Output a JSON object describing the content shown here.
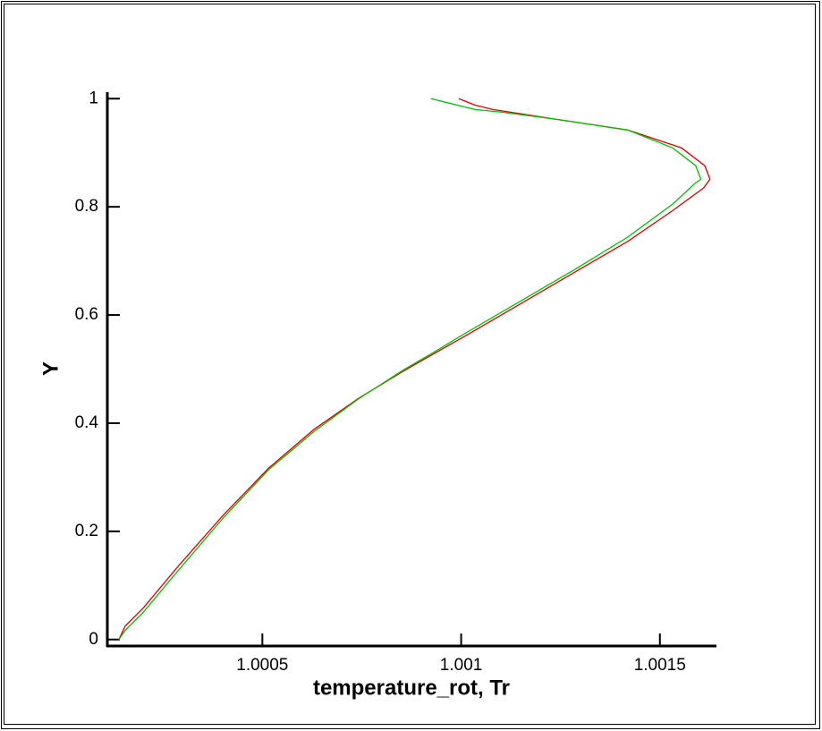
{
  "chart_data": {
    "type": "line",
    "xlabel": "temperature_rot, Tr",
    "ylabel": "Y",
    "xlim": [
      1.00011,
      1.00164
    ],
    "ylim": [
      -0.012,
      1.012
    ],
    "xticks": [
      1.0005,
      1.001,
      1.0015
    ],
    "yticks": [
      0,
      0.2,
      0.4,
      0.6,
      0.8,
      1
    ],
    "series": [
      {
        "color": "#e00000",
        "x": [
          1.000139,
          1.000155,
          1.0002,
          1.00029,
          1.000403,
          1.000516,
          1.000629,
          1.000742,
          1.000854,
          1.000933,
          1.001012,
          1.001148,
          1.001283,
          1.001419,
          1.001532,
          1.00161,
          1.001626,
          1.001613,
          1.001554,
          1.001419,
          1.001238,
          1.00108,
          1.001035,
          1.000994
        ],
        "values": [
          0,
          0.025,
          0.058,
          0.137,
          0.231,
          0.317,
          0.388,
          0.446,
          0.496,
          0.529,
          0.562,
          0.62,
          0.678,
          0.736,
          0.793,
          0.835,
          0.851,
          0.876,
          0.909,
          0.942,
          0.962,
          0.98,
          0.988,
          1.0
        ]
      },
      {
        "color": "#00c000",
        "x": [
          1.000139,
          1.000155,
          1.0002,
          1.00029,
          1.000403,
          1.000516,
          1.000629,
          1.000742,
          1.000854,
          1.000933,
          1.001012,
          1.001148,
          1.001283,
          1.001419,
          1.001532,
          1.001588,
          1.001603,
          1.00159,
          1.001532,
          1.001419,
          1.001238,
          1.001103,
          1.001035,
          1.000924
        ],
        "values": [
          0,
          0.017,
          0.05,
          0.129,
          0.226,
          0.314,
          0.384,
          0.445,
          0.498,
          0.532,
          0.567,
          0.625,
          0.683,
          0.744,
          0.805,
          0.843,
          0.851,
          0.876,
          0.909,
          0.942,
          0.962,
          0.975,
          0.98,
          1.0
        ]
      }
    ]
  }
}
